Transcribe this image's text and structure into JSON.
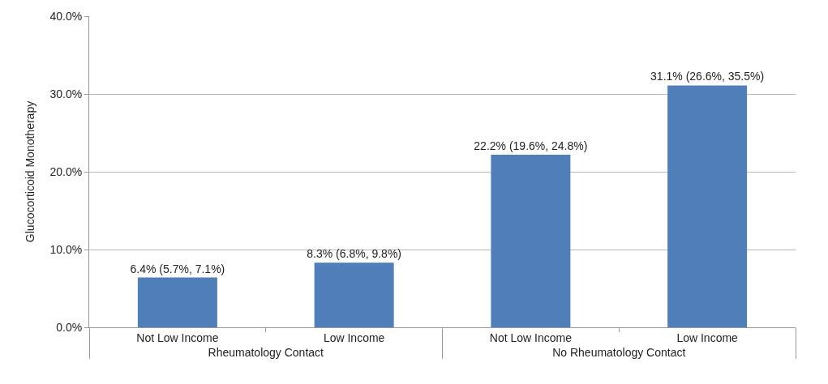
{
  "chart_data": {
    "type": "bar",
    "ylabel": "Glucocorticoid Monotherapy",
    "categories": [
      "Not Low Income",
      "Low Income",
      "Not Low Income",
      "Low Income"
    ],
    "values": [
      6.4,
      8.3,
      22.2,
      31.1
    ],
    "value_labels": [
      "6.4% (5.7%, 7.1%)",
      "8.3% (6.8%, 9.8%)",
      "22.2% (19.6%, 24.8%)",
      "31.1% (26.6%, 35.5%)"
    ],
    "color": "#4f7eb8",
    "annotations": [
      "Rheumatology Contact",
      "No Rheumatology Contact"
    ],
    "ylim": [
      0,
      40
    ],
    "yticks": [
      {
        "value": 0,
        "label": "0.0%"
      },
      {
        "value": 10,
        "label": "10.0%"
      },
      {
        "value": 20,
        "label": "20.0%"
      },
      {
        "value": 30,
        "label": "30.0%"
      },
      {
        "value": 40,
        "label": "40.0%"
      }
    ],
    "grid": "y"
  }
}
